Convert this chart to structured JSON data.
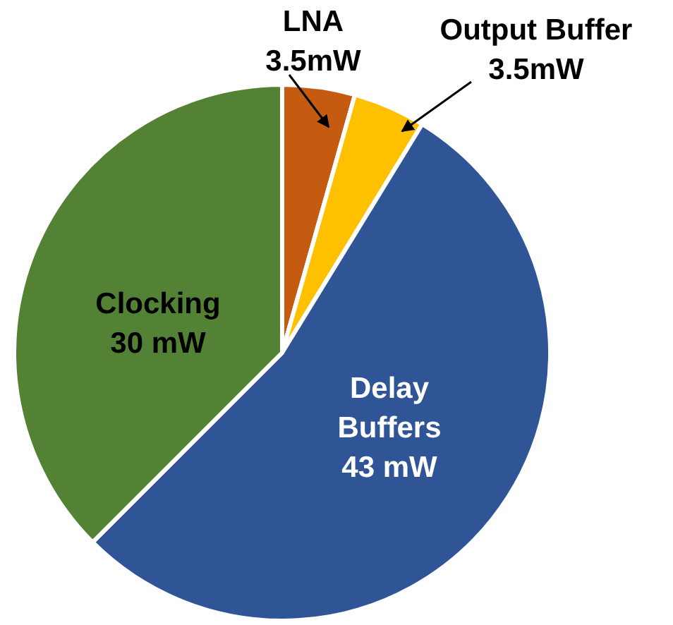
{
  "chart_data": {
    "type": "pie",
    "categories": [
      "LNA",
      "Output Buffer",
      "Delay Buffers",
      "Clocking"
    ],
    "values": [
      3.5,
      3.5,
      43,
      30
    ],
    "colors": [
      "#c55a11",
      "#ffc000",
      "#2f5597",
      "#548235"
    ],
    "value_labels": [
      "3.5mW",
      "3.5mW",
      "43 mW",
      "30 mW"
    ]
  }
}
